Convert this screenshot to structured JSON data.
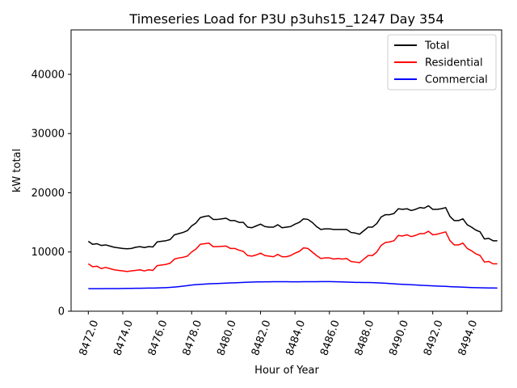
{
  "chart_data": {
    "type": "line",
    "title": "Timeseries Load for P3U p3uhs15_1247  Day 354",
    "xlabel": "Hour of Year",
    "ylabel": "kW total",
    "xlim": [
      8471.0,
      8496.0
    ],
    "ylim": [
      0,
      47500
    ],
    "x_ticks": [
      8472,
      8474,
      8476,
      8478,
      8480,
      8482,
      8484,
      8486,
      8488,
      8490,
      8492,
      8494
    ],
    "x_tick_labels": [
      "8472.0",
      "8474.0",
      "8476.0",
      "8478.0",
      "8480.0",
      "8482.0",
      "8484.0",
      "8486.0",
      "8488.0",
      "8490.0",
      "8492.0",
      "8494.0"
    ],
    "y_ticks": [
      0,
      10000,
      20000,
      30000,
      40000
    ],
    "y_tick_labels": [
      "0",
      "10000",
      "20000",
      "30000",
      "40000"
    ],
    "legend_position": "top-right",
    "x_start": 8472.0,
    "x_step": 0.25,
    "series": [
      {
        "name": "Total",
        "color": "#000000",
        "values": [
          11800,
          11300,
          11400,
          11100,
          11200,
          11000,
          10800,
          10700,
          10600,
          10550,
          10600,
          10800,
          10900,
          10750,
          10900,
          10850,
          11700,
          11800,
          11900,
          12100,
          12900,
          13100,
          13300,
          13600,
          14400,
          14900,
          15800,
          16000,
          16100,
          15500,
          15500,
          15600,
          15700,
          15300,
          15300,
          15000,
          15000,
          14200,
          14100,
          14400,
          14700,
          14300,
          14200,
          14200,
          14600,
          14100,
          14200,
          14300,
          14700,
          15000,
          15600,
          15500,
          15000,
          14300,
          13800,
          13900,
          13900,
          13800,
          13800,
          13800,
          13800,
          13300,
          13200,
          13000,
          13600,
          14200,
          14200,
          14800,
          15900,
          16300,
          16300,
          16500,
          17300,
          17200,
          17300,
          17000,
          17200,
          17500,
          17400,
          17800,
          17200,
          17200,
          17300,
          17500,
          16000,
          15300,
          15300,
          15600,
          14600,
          14200,
          13700,
          13400,
          12200,
          12300,
          11900,
          11900
        ]
      },
      {
        "name": "Residential",
        "color": "#ff0000",
        "values": [
          8000,
          7500,
          7600,
          7200,
          7400,
          7200,
          7000,
          6900,
          6800,
          6700,
          6800,
          6900,
          7000,
          6800,
          7000,
          6900,
          7700,
          7800,
          7900,
          8100,
          8800,
          9000,
          9100,
          9300,
          10000,
          10500,
          11300,
          11400,
          11500,
          10900,
          10900,
          10950,
          11000,
          10600,
          10600,
          10300,
          10100,
          9400,
          9300,
          9500,
          9800,
          9400,
          9300,
          9200,
          9600,
          9200,
          9200,
          9400,
          9800,
          10100,
          10700,
          10600,
          10000,
          9400,
          8900,
          9000,
          9000,
          8800,
          8900,
          8800,
          8900,
          8400,
          8300,
          8200,
          8800,
          9400,
          9400,
          10000,
          11100,
          11600,
          11700,
          11900,
          12800,
          12700,
          12900,
          12600,
          12800,
          13100,
          13100,
          13500,
          12900,
          13000,
          13200,
          13400,
          11900,
          11200,
          11200,
          11500,
          10600,
          10200,
          9700,
          9400,
          8300,
          8400,
          8000,
          8000
        ]
      },
      {
        "name": "Commercial",
        "color": "#0000ff",
        "values": [
          3800,
          3800,
          3810,
          3810,
          3820,
          3820,
          3830,
          3830,
          3840,
          3850,
          3860,
          3870,
          3880,
          3890,
          3900,
          3910,
          3930,
          3950,
          3980,
          4020,
          4080,
          4150,
          4230,
          4320,
          4420,
          4480,
          4530,
          4580,
          4620,
          4650,
          4680,
          4710,
          4740,
          4770,
          4800,
          4830,
          4860,
          4890,
          4920,
          4940,
          4950,
          4960,
          4970,
          4980,
          4990,
          4990,
          4980,
          4970,
          4970,
          4970,
          4980,
          4980,
          4990,
          4990,
          5000,
          5000,
          5000,
          4990,
          4970,
          4950,
          4920,
          4890,
          4870,
          4860,
          4850,
          4840,
          4830,
          4800,
          4760,
          4720,
          4670,
          4620,
          4570,
          4530,
          4500,
          4470,
          4430,
          4390,
          4350,
          4310,
          4280,
          4250,
          4220,
          4190,
          4150,
          4120,
          4090,
          4060,
          4030,
          4000,
          3980,
          3960,
          3940,
          3930,
          3920,
          3910
        ]
      }
    ]
  }
}
